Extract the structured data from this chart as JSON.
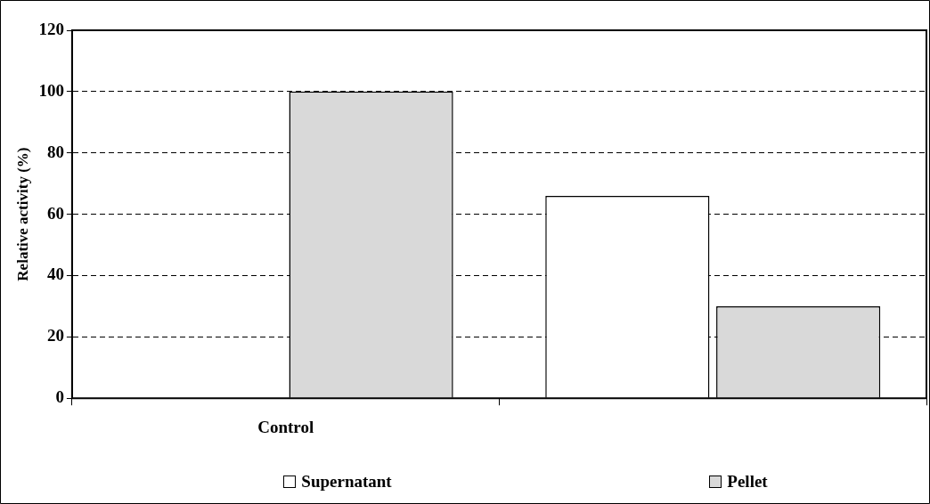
{
  "chart_data": {
    "type": "bar",
    "ylabel": "Relative activity (%)",
    "categories": [
      "Control",
      null
    ],
    "series": [
      {
        "name": "Supernatant",
        "color": "#ffffff",
        "values": [
          0,
          66
        ]
      },
      {
        "name": "Pellet",
        "color": "#d9d9d9",
        "values": [
          100,
          30
        ]
      }
    ],
    "ylim": [
      0,
      120
    ],
    "yticks": [
      0,
      20,
      40,
      60,
      80,
      100,
      120
    ],
    "grid": "y",
    "legend": "bottom"
  }
}
